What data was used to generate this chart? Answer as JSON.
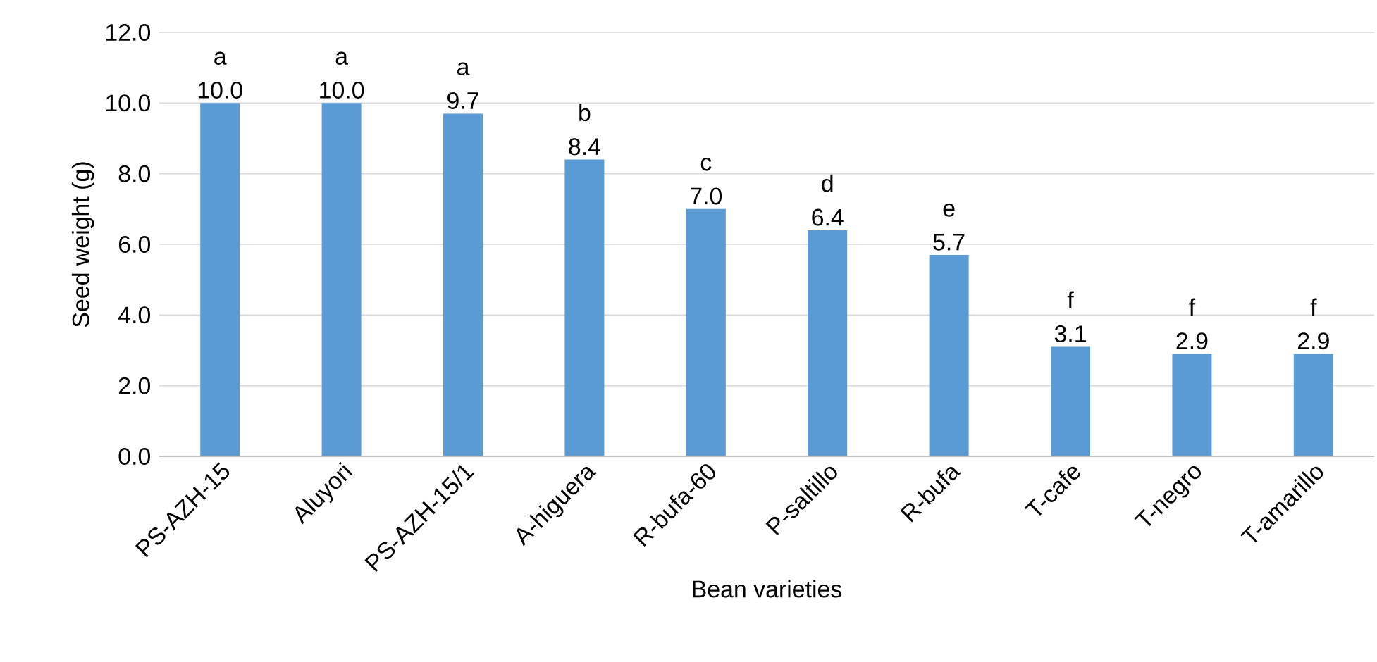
{
  "chart_data": {
    "type": "bar",
    "xlabel": "Bean varieties",
    "ylabel": "Seed weight (g)",
    "categories": [
      "PS-AZH-15",
      "Aluyori",
      "PS-AZH-15/1",
      "A-higuera",
      "R-bufa-60",
      "P-saltillo",
      "R-bufa",
      "T-cafe",
      "T-negro",
      "T-amarillo"
    ],
    "values": [
      10.0,
      10.0,
      9.7,
      8.4,
      7.0,
      6.4,
      5.7,
      3.1,
      2.9,
      2.9
    ],
    "value_labels": [
      "10.0",
      "10.0",
      "9.7",
      "8.4",
      "7.0",
      "6.4",
      "5.7",
      "3.1",
      "2.9",
      "2.9"
    ],
    "color": "#5b9bd5",
    "ylim": [
      0,
      12
    ],
    "yticks": [
      {
        "value": 0,
        "label": "0.0"
      },
      {
        "value": 2,
        "label": "2.0"
      },
      {
        "value": 4,
        "label": "4.0"
      },
      {
        "value": 6,
        "label": "6.0"
      },
      {
        "value": 8,
        "label": "8.0"
      },
      {
        "value": 10,
        "label": "10.0"
      },
      {
        "value": 12,
        "label": "12.0"
      }
    ],
    "grid": "y",
    "annotations": [
      {
        "text": "a",
        "x": "PS-AZH-15",
        "y": 10.0
      },
      {
        "text": "a",
        "x": "Aluyori",
        "y": 10.0
      },
      {
        "text": "a",
        "x": "PS-AZH-15/1",
        "y": 9.7
      },
      {
        "text": "b",
        "x": "A-higuera",
        "y": 8.4
      },
      {
        "text": "c",
        "x": "R-bufa-60",
        "y": 7.0
      },
      {
        "text": "d",
        "x": "P-saltillo",
        "y": 6.4
      },
      {
        "text": "e",
        "x": "R-bufa",
        "y": 5.7
      },
      {
        "text": "f",
        "x": "T-cafe",
        "y": 3.1
      },
      {
        "text": "f",
        "x": "T-negro",
        "y": 2.9
      },
      {
        "text": "f",
        "x": "T-amarillo",
        "y": 2.9
      }
    ]
  }
}
